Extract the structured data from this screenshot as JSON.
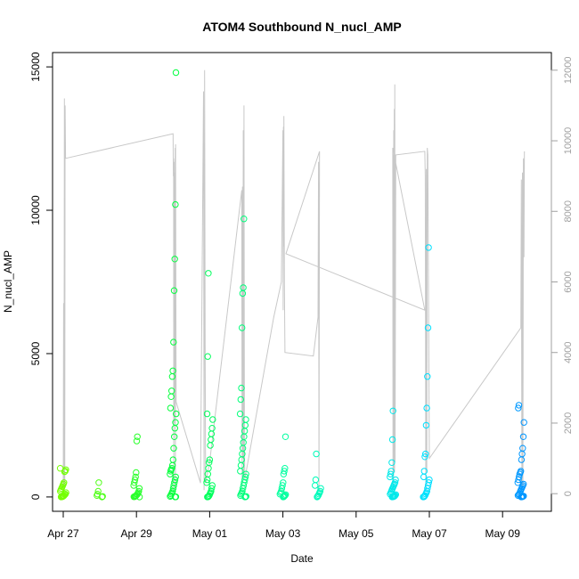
{
  "chart_data": {
    "type": "scatter",
    "title": "ATOM4 Southbound N_nucl_AMP",
    "xlabel": "Date",
    "ylabel": "N_nucl_AMP",
    "x_unit": "date",
    "x_range": [
      "2016-04-26T17:00",
      "2016-05-10T08:00"
    ],
    "ylim": [
      -500,
      15500
    ],
    "y_ticks": [
      0,
      5000,
      10000,
      15000
    ],
    "y_tick_labels": [
      "0",
      "5000",
      "10000",
      "15000"
    ],
    "x_ticks": [
      "2016-04-27",
      "2016-04-29",
      "2016-05-01",
      "2016-05-03",
      "2016-05-05",
      "2016-05-07",
      "2016-05-09"
    ],
    "x_tick_labels": [
      "Apr 27",
      "Apr 29",
      "May 01",
      "May 03",
      "May 05",
      "May 07",
      "May 09"
    ],
    "y2lim": [
      -500,
      12500
    ],
    "y2_ticks": [
      0,
      2000,
      4000,
      6000,
      8000,
      10000,
      12000
    ],
    "y2_tick_labels": [
      "0",
      "2000",
      "4000",
      "6000",
      "8000",
      "10000",
      "12000"
    ],
    "grid": false,
    "legend": "none",
    "colors": {
      "line": "#c8c8c8",
      "axis": "#000000",
      "right_axis": "#a0a0a0",
      "gradient": [
        "#7fff00",
        "#00ff40",
        "#00ffb0",
        "#00e0ff",
        "#0080ff"
      ]
    },
    "series": [
      {
        "axis": "left",
        "style": "open-circles",
        "clusters": [
          {
            "t": "2016-04-27T00:00",
            "values": [
              1000,
              950,
              900,
              880,
              500,
              450,
              400,
              350,
              300,
              250,
              200,
              150,
              100,
              80,
              50,
              30,
              20,
              10,
              5,
              0
            ]
          },
          {
            "t": "2016-04-28T00:00",
            "values": [
              500,
              200,
              100,
              50,
              20,
              0
            ]
          },
          {
            "t": "2016-04-29T00:00",
            "values": [
              2100,
              1950,
              850,
              700,
              600,
              500,
              400,
              300,
              200,
              150,
              100,
              80,
              50,
              30,
              20,
              10,
              5,
              0
            ]
          },
          {
            "t": "2016-04-30T00:00",
            "values": [
              14800,
              10200,
              8300,
              7200,
              5400,
              4400,
              4200,
              3700,
              3500,
              3100,
              2900,
              2600,
              2400,
              2100,
              1700,
              1300,
              1100,
              1000,
              950,
              900,
              800,
              700,
              600,
              500,
              400,
              300,
              200,
              150,
              100,
              50,
              20,
              5,
              0
            ]
          },
          {
            "t": "2016-05-01T00:00",
            "values": [
              7800,
              4900,
              2900,
              2700,
              2400,
              2200,
              2000,
              1800,
              1300,
              1200,
              1000,
              800,
              600,
              500,
              400,
              300,
              200,
              150,
              100,
              50,
              20,
              5,
              0
            ]
          },
          {
            "t": "2016-05-01T22:00",
            "values": [
              9700,
              7300,
              7100,
              5900,
              3800,
              3400,
              2900,
              2700,
              2500,
              2300,
              2100,
              1900,
              1700,
              1500,
              1300,
              1100,
              900,
              800,
              700,
              600,
              500,
              400,
              300,
              200,
              150,
              100,
              50,
              20,
              5,
              0
            ]
          },
          {
            "t": "2016-05-03T00:00",
            "values": [
              2100,
              1000,
              900,
              800,
              500,
              400,
              300,
              200,
              150,
              100,
              80,
              50,
              30,
              10,
              0
            ]
          },
          {
            "t": "2016-05-03T23:00",
            "values": [
              1500,
              600,
              400,
              300,
              200,
              150,
              100,
              50,
              20,
              0
            ]
          },
          {
            "t": "2016-05-06T00:00",
            "values": [
              3000,
              2000,
              1200,
              900,
              800,
              700,
              600,
              500,
              450,
              400,
              350,
              300,
              250,
              200,
              150,
              100,
              80,
              50,
              30,
              20,
              10,
              5,
              0
            ]
          },
          {
            "t": "2016-05-06T22:00",
            "values": [
              8700,
              5900,
              4200,
              3100,
              2500,
              1500,
              1400,
              900,
              700,
              600,
              500,
              400,
              300,
              200,
              150,
              100,
              50,
              20,
              5,
              0
            ]
          },
          {
            "t": "2016-05-09T12:00",
            "values": [
              3200,
              3100,
              2600,
              2100,
              1700,
              1500,
              1300,
              900,
              850,
              800,
              700,
              600,
              500,
              450,
              400,
              350,
              300,
              250,
              200,
              150,
              100,
              80,
              50,
              30,
              20,
              10,
              5,
              0
            ]
          }
        ]
      },
      {
        "axis": "right",
        "style": "line",
        "color": "#c8c8c8",
        "points": [
          [
            "2016-04-27T00:00",
            0
          ],
          [
            "2016-04-27T00:15",
            5400
          ],
          [
            "2016-04-27T00:30",
            100
          ],
          [
            "2016-04-27T00:45",
            11200
          ],
          [
            "2016-04-27T01:00",
            200
          ],
          [
            "2016-04-27T01:15",
            11000
          ],
          [
            "2016-04-27T01:30",
            9500
          ],
          [
            "2016-04-30T00:00",
            10200
          ],
          [
            "2016-04-30T00:10",
            9000
          ],
          [
            "2016-04-30T00:20",
            9500
          ],
          [
            "2016-04-30T00:30",
            100
          ],
          [
            "2016-04-30T00:40",
            9400
          ],
          [
            "2016-04-30T00:50",
            2000
          ],
          [
            "2016-04-30T01:00",
            9100
          ],
          [
            "2016-04-30T01:10",
            3000
          ],
          [
            "2016-04-30T01:20",
            9800
          ],
          [
            "2016-04-30T01:30",
            200
          ],
          [
            "2016-04-30T01:40",
            9900
          ],
          [
            "2016-04-30T02:00",
            2600
          ],
          [
            "2016-04-30T18:00",
            300
          ],
          [
            "2016-04-30T20:00",
            11400
          ],
          [
            "2016-04-30T20:20",
            100
          ],
          [
            "2016-04-30T20:40",
            12000
          ],
          [
            "2016-04-30T21:00",
            4200
          ],
          [
            "2016-04-30T21:20",
            300
          ],
          [
            "2016-05-01T00:00",
            900
          ],
          [
            "2016-05-01T21:00",
            8600
          ],
          [
            "2016-05-01T21:15",
            200
          ],
          [
            "2016-05-01T21:30",
            8700
          ],
          [
            "2016-05-01T21:45",
            1000
          ],
          [
            "2016-05-01T22:00",
            10300
          ],
          [
            "2016-05-01T22:15",
            500
          ],
          [
            "2016-05-01T22:30",
            11000
          ],
          [
            "2016-05-01T22:45",
            1400
          ],
          [
            "2016-05-01T23:00",
            400
          ],
          [
            "2016-05-02T18:00",
            5000
          ],
          [
            "2016-05-02T23:00",
            6000
          ],
          [
            "2016-05-03T00:00",
            10300
          ],
          [
            "2016-05-03T00:10",
            5200
          ],
          [
            "2016-05-03T00:20",
            10400
          ],
          [
            "2016-05-03T00:30",
            7000
          ],
          [
            "2016-05-03T00:40",
            10700
          ],
          [
            "2016-05-03T01:00",
            5900
          ],
          [
            "2016-05-03T01:20",
            4000
          ],
          [
            "2016-05-03T20:00",
            3900
          ],
          [
            "2016-05-03T23:00",
            5000
          ],
          [
            "2016-05-03T23:20",
            9400
          ],
          [
            "2016-05-03T23:40",
            100
          ],
          [
            "2016-05-04T00:00",
            9700
          ],
          [
            "2016-05-03T02:00",
            6800
          ],
          [
            "2016-05-06T21:00",
            5200
          ],
          [
            "2016-05-06T00:00",
            9800
          ],
          [
            "2016-05-06T00:10",
            500
          ],
          [
            "2016-05-06T00:20",
            9600
          ],
          [
            "2016-05-06T00:30",
            200
          ],
          [
            "2016-05-06T00:40",
            10300
          ],
          [
            "2016-05-06T00:50",
            1200
          ],
          [
            "2016-05-06T01:00",
            10900
          ],
          [
            "2016-05-06T01:10",
            600
          ],
          [
            "2016-05-06T01:20",
            11600
          ],
          [
            "2016-05-06T01:30",
            900
          ],
          [
            "2016-05-06T02:00",
            9600
          ],
          [
            "2016-05-06T21:00",
            9700
          ],
          [
            "2016-05-06T21:20",
            9000
          ],
          [
            "2016-05-06T21:40",
            100
          ],
          [
            "2016-05-06T22:00",
            9200
          ],
          [
            "2016-05-06T22:20",
            600
          ],
          [
            "2016-05-06T22:40",
            9800
          ],
          [
            "2016-05-06T23:00",
            9600
          ],
          [
            "2016-05-07T00:00",
            1000
          ],
          [
            "2016-05-09T12:00",
            4700
          ],
          [
            "2016-05-09T12:20",
            8900
          ],
          [
            "2016-05-09T12:40",
            100
          ],
          [
            "2016-05-09T13:00",
            9100
          ],
          [
            "2016-05-09T13:20",
            200
          ],
          [
            "2016-05-09T13:40",
            9500
          ],
          [
            "2016-05-09T14:00",
            6700
          ],
          [
            "2016-05-09T14:20",
            9700
          ]
        ]
      }
    ]
  }
}
